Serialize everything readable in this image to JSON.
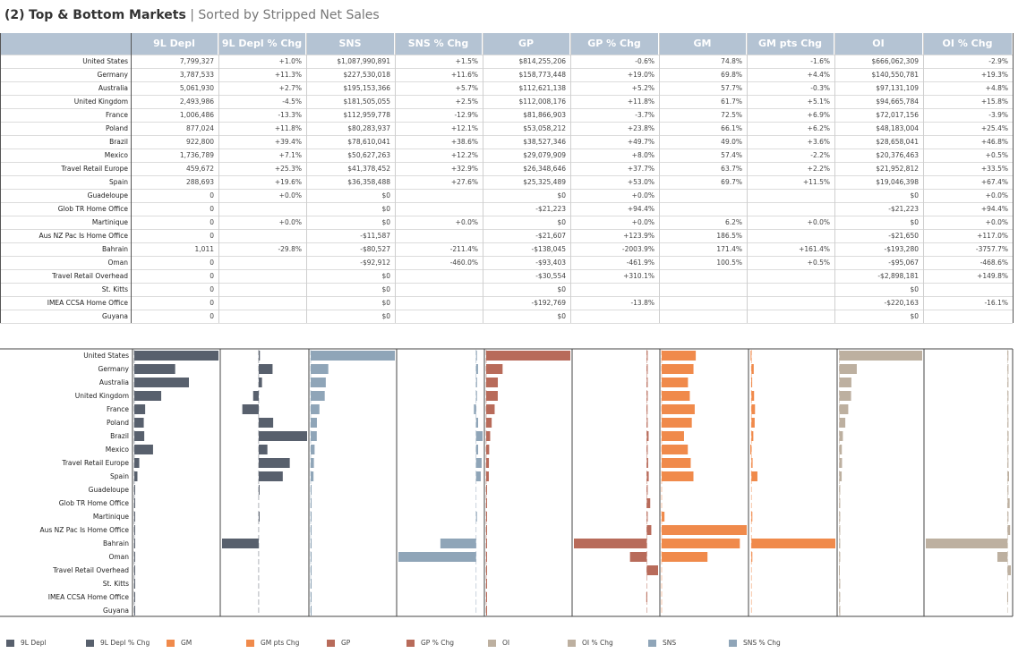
{
  "title": {
    "number": "(2)",
    "main": "Top & Bottom Markets",
    "separator": " | ",
    "subtitle": "Sorted by Stripped Net Sales"
  },
  "table": {
    "columns": [
      "9L Depl",
      "9L Depl % Chg",
      "SNS",
      "SNS % Chg",
      "GP",
      "GP % Chg",
      "GM",
      "GM pts Chg",
      "OI",
      "OI % Chg"
    ],
    "rows": [
      {
        "market": "United States",
        "values": [
          "7,799,327",
          "+1.0%",
          "$1,087,990,891",
          "+1.5%",
          "$814,255,206",
          "-0.6%",
          "74.8%",
          "-1.6%",
          "$666,062,309",
          "-2.9%"
        ]
      },
      {
        "market": "Germany",
        "values": [
          "3,787,533",
          "+11.3%",
          "$227,530,018",
          "+11.6%",
          "$158,773,448",
          "+19.0%",
          "69.8%",
          "+4.4%",
          "$140,550,781",
          "+19.3%"
        ]
      },
      {
        "market": "Australia",
        "values": [
          "5,061,930",
          "+2.7%",
          "$195,153,366",
          "+5.7%",
          "$112,621,138",
          "+5.2%",
          "57.7%",
          "-0.3%",
          "$97,131,109",
          "+4.8%"
        ]
      },
      {
        "market": "United Kingdom",
        "values": [
          "2,493,986",
          "-4.5%",
          "$181,505,055",
          "+2.5%",
          "$112,008,176",
          "+11.8%",
          "61.7%",
          "+5.1%",
          "$94,665,784",
          "+15.8%"
        ]
      },
      {
        "market": "France",
        "values": [
          "1,006,486",
          "-13.3%",
          "$112,959,778",
          "-12.9%",
          "$81,866,903",
          "-3.7%",
          "72.5%",
          "+6.9%",
          "$72,017,156",
          "-3.9%"
        ]
      },
      {
        "market": "Poland",
        "values": [
          "877,024",
          "+11.8%",
          "$80,283,937",
          "+12.1%",
          "$53,058,212",
          "+23.8%",
          "66.1%",
          "+6.2%",
          "$48,183,004",
          "+25.4%"
        ]
      },
      {
        "market": "Brazil",
        "values": [
          "922,800",
          "+39.4%",
          "$78,610,041",
          "+38.6%",
          "$38,527,346",
          "+49.7%",
          "49.0%",
          "+3.6%",
          "$28,658,041",
          "+46.8%"
        ]
      },
      {
        "market": "Mexico",
        "values": [
          "1,736,789",
          "+7.1%",
          "$50,627,263",
          "+12.2%",
          "$29,079,909",
          "+8.0%",
          "57.4%",
          "-2.2%",
          "$20,376,463",
          "+0.5%"
        ]
      },
      {
        "market": "Travel Retail Europe",
        "values": [
          "459,672",
          "+25.3%",
          "$41,378,452",
          "+32.9%",
          "$26,348,646",
          "+37.7%",
          "63.7%",
          "+2.2%",
          "$21,952,812",
          "+33.5%"
        ]
      },
      {
        "market": "Spain",
        "values": [
          "288,693",
          "+19.6%",
          "$36,358,488",
          "+27.6%",
          "$25,325,489",
          "+53.0%",
          "69.7%",
          "+11.5%",
          "$19,046,398",
          "+67.4%"
        ]
      },
      {
        "market": "Guadeloupe",
        "values": [
          "0",
          "+0.0%",
          "$0",
          "",
          "$0",
          "+0.0%",
          "",
          "",
          "$0",
          "+0.0%"
        ]
      },
      {
        "market": "Glob TR Home Office",
        "values": [
          "0",
          "",
          "$0",
          "",
          "-$21,223",
          "+94.4%",
          "",
          "",
          "-$21,223",
          "+94.4%"
        ]
      },
      {
        "market": "Martinique",
        "values": [
          "0",
          "+0.0%",
          "$0",
          "+0.0%",
          "$0",
          "+0.0%",
          "6.2%",
          "+0.0%",
          "$0",
          "+0.0%"
        ]
      },
      {
        "market": "Aus NZ Pac Is Home Office",
        "values": [
          "0",
          "",
          "-$11,587",
          "",
          "-$21,607",
          "+123.9%",
          "186.5%",
          "",
          "-$21,650",
          "+117.0%"
        ]
      },
      {
        "market": "Bahrain",
        "values": [
          "1,011",
          "-29.8%",
          "-$80,527",
          "-211.4%",
          "-$138,045",
          "-2003.9%",
          "171.4%",
          "+161.4%",
          "-$193,280",
          "-3757.7%"
        ]
      },
      {
        "market": "Oman",
        "values": [
          "0",
          "",
          "-$92,912",
          "-460.0%",
          "-$93,403",
          "-461.9%",
          "100.5%",
          "+0.5%",
          "-$95,067",
          "-468.6%"
        ]
      },
      {
        "market": "Travel Retail Overhead",
        "values": [
          "0",
          "",
          "$0",
          "",
          "-$30,554",
          "+310.1%",
          "",
          "",
          "-$2,898,181",
          "+149.8%"
        ]
      },
      {
        "market": "St. Kitts",
        "values": [
          "0",
          "",
          "$0",
          "",
          "$0",
          "",
          "",
          "",
          "$0",
          ""
        ]
      },
      {
        "market": "IMEA CCSA Home Office",
        "values": [
          "0",
          "",
          "$0",
          "",
          "-$192,769",
          "-13.8%",
          "",
          "",
          "-$220,163",
          "-16.1%"
        ]
      },
      {
        "market": "Guyana",
        "values": [
          "0",
          "",
          "$0",
          "",
          "$0",
          "",
          "",
          "",
          "$0",
          ""
        ]
      }
    ]
  },
  "chart_data": {
    "type": "bar",
    "orientation": "horizontal",
    "categories": [
      "United States",
      "Germany",
      "Australia",
      "United Kingdom",
      "France",
      "Poland",
      "Brazil",
      "Mexico",
      "Travel Retail Europe",
      "Spain",
      "Guadeloupe",
      "Glob TR Home Office",
      "Martinique",
      "Aus NZ Pac Is Home Office",
      "Bahrain",
      "Oman",
      "Travel Retail Overhead",
      "St. Kitts",
      "IMEA CCSA Home Office",
      "Guyana"
    ],
    "series": [
      {
        "name": "9L Depl",
        "color": "#58606d",
        "values": [
          7799327,
          3787533,
          5061930,
          2493986,
          1006486,
          877024,
          922800,
          1736789,
          459672,
          288693,
          0,
          0,
          0,
          0,
          1011,
          0,
          0,
          0,
          0,
          0
        ]
      },
      {
        "name": "9L Depl % Chg",
        "color": "#58606d",
        "values": [
          1.0,
          11.3,
          2.7,
          -4.5,
          -13.3,
          11.8,
          39.4,
          7.1,
          25.3,
          19.6,
          0.0,
          null,
          0.0,
          null,
          -29.8,
          null,
          null,
          null,
          null,
          null
        ]
      },
      {
        "name": "SNS",
        "color": "#8fa5b8",
        "values": [
          1087990891,
          227530018,
          195153366,
          181505055,
          112959778,
          80283937,
          78610041,
          50627263,
          41378452,
          36358488,
          0,
          0,
          0,
          -11587,
          -80527,
          -92912,
          0,
          0,
          0,
          0
        ]
      },
      {
        "name": "SNS % Chg",
        "color": "#8fa5b8",
        "values": [
          1.5,
          11.6,
          5.7,
          2.5,
          -12.9,
          12.1,
          38.6,
          12.2,
          32.9,
          27.6,
          null,
          null,
          0.0,
          null,
          -211.4,
          -460.0,
          null,
          null,
          null,
          null
        ]
      },
      {
        "name": "GP",
        "color": "#b86b5a",
        "values": [
          814255206,
          158773448,
          112621138,
          112008176,
          81866903,
          53058212,
          38527346,
          29079909,
          26348646,
          25325489,
          0,
          -21223,
          0,
          -21607,
          -138045,
          -93403,
          -30554,
          0,
          -192769,
          0
        ]
      },
      {
        "name": "GP % Chg",
        "color": "#b86b5a",
        "values": [
          -0.6,
          19.0,
          5.2,
          11.8,
          -3.7,
          23.8,
          49.7,
          8.0,
          37.7,
          53.0,
          0.0,
          94.4,
          0.0,
          123.9,
          -2003.9,
          -461.9,
          310.1,
          null,
          -13.8,
          null
        ]
      },
      {
        "name": "GM",
        "color": "#f08a4b",
        "values": [
          74.8,
          69.8,
          57.7,
          61.7,
          72.5,
          66.1,
          49.0,
          57.4,
          63.7,
          69.7,
          null,
          null,
          6.2,
          186.5,
          171.4,
          100.5,
          null,
          null,
          null,
          null
        ]
      },
      {
        "name": "GM pts Chg",
        "color": "#f08a4b",
        "values": [
          -1.6,
          4.4,
          -0.3,
          5.1,
          6.9,
          6.2,
          3.6,
          -2.2,
          2.2,
          11.5,
          null,
          null,
          0.0,
          null,
          161.4,
          0.5,
          null,
          null,
          null,
          null
        ]
      },
      {
        "name": "OI",
        "color": "#bdb0a0",
        "values": [
          666062309,
          140550781,
          97131109,
          94665784,
          72017156,
          48183004,
          28658041,
          20376463,
          21952812,
          19046398,
          0,
          -21223,
          0,
          -21650,
          -193280,
          -95067,
          -2898181,
          0,
          -220163,
          0
        ]
      },
      {
        "name": "OI % Chg",
        "color": "#bdb0a0",
        "values": [
          -2.9,
          19.3,
          4.8,
          15.8,
          -3.9,
          25.4,
          46.8,
          0.5,
          33.5,
          67.4,
          0.0,
          94.4,
          0.0,
          117.0,
          -3757.7,
          -468.6,
          149.8,
          null,
          -16.1,
          null
        ]
      }
    ],
    "legend": {
      "placement": "bottom",
      "items": [
        {
          "label": "9L Depl",
          "color": "#58606d"
        },
        {
          "label": "9L Depl % Chg",
          "color": "#58606d"
        },
        {
          "label": "GM",
          "color": "#f08a4b"
        },
        {
          "label": "GM pts Chg",
          "color": "#f08a4b"
        },
        {
          "label": "GP",
          "color": "#b86b5a"
        },
        {
          "label": "GP % Chg",
          "color": "#b86b5a"
        },
        {
          "label": "OI",
          "color": "#bdb0a0"
        },
        {
          "label": "OI % Chg",
          "color": "#bdb0a0"
        },
        {
          "label": "SNS",
          "color": "#8fa5b8"
        },
        {
          "label": "SNS % Chg",
          "color": "#8fa5b8"
        }
      ]
    }
  }
}
